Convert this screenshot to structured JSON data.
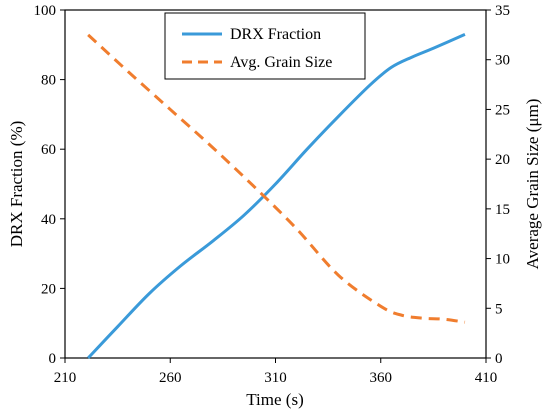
{
  "chart_data": {
    "type": "line",
    "xlabel": "Time (s)",
    "ylabel_left": "DRX Fraction (%)",
    "ylabel_right": "Average Grain Size (μm)",
    "xlim": [
      210,
      410
    ],
    "ylim_left": [
      0,
      100
    ],
    "ylim_right": [
      0,
      35
    ],
    "x_ticks": [
      "210",
      "260",
      "310",
      "360",
      "410"
    ],
    "y_ticks_left": [
      "0",
      "20",
      "40",
      "60",
      "80",
      "100"
    ],
    "y_ticks_right": [
      "0",
      "5",
      "10",
      "15",
      "20",
      "25",
      "30",
      "35"
    ],
    "grid": false,
    "legend_position": "top-center",
    "series": [
      {
        "name": "DRX Fraction",
        "axis": "left",
        "color": "#3a9ad9",
        "style": "solid",
        "x": [
          221,
          235,
          250,
          265,
          280,
          295,
          310,
          325,
          340,
          355,
          365,
          375,
          385,
          400
        ],
        "y": [
          0,
          9,
          18.5,
          26.5,
          33.5,
          41,
          50,
          60,
          69.5,
          78.5,
          83.5,
          86.5,
          89,
          93
        ]
      },
      {
        "name": "Avg. Grain Size",
        "axis": "right",
        "color": "#f07d2e",
        "style": "dashed",
        "x": [
          221,
          240,
          260,
          280,
          300,
          320,
          340,
          360,
          370,
          380,
          390,
          400
        ],
        "y": [
          32.5,
          28.8,
          25,
          21.2,
          17.2,
          13,
          8.3,
          5.2,
          4.3,
          4,
          3.9,
          3.6
        ]
      }
    ]
  }
}
